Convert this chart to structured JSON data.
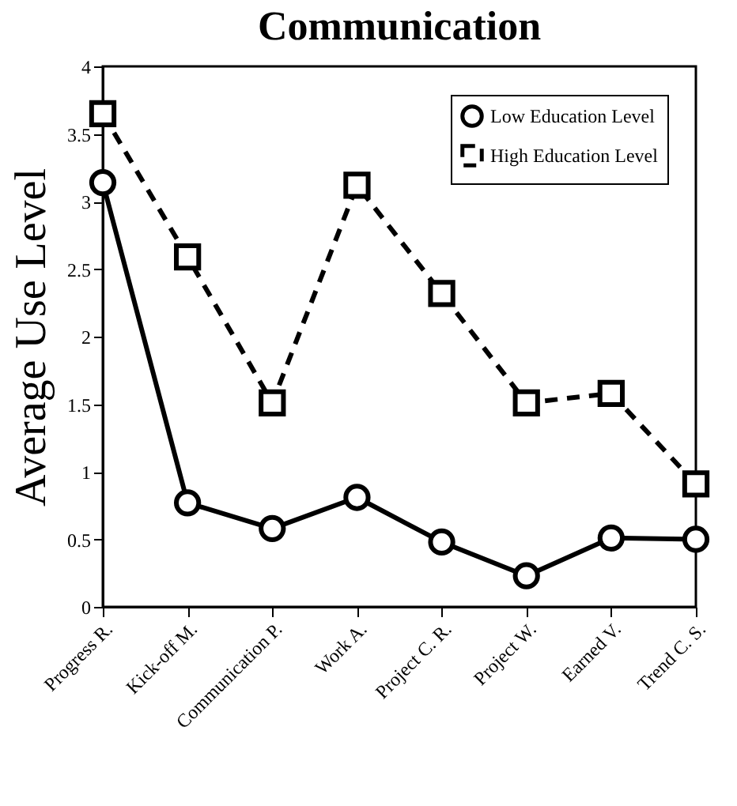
{
  "chart_data": {
    "type": "line",
    "title": "Communication",
    "ylabel": "Average Use Level",
    "categories": [
      "Progress R.",
      "Kick-off M.",
      "Communication P.",
      "Work A.",
      "Project C. R.",
      "Project W.",
      "Earned V.",
      "Trend C. S."
    ],
    "series": [
      {
        "name": "Low Education Level",
        "color": "#000000",
        "marker": "circle",
        "line_style": "solid",
        "values": [
          3.14,
          0.77,
          0.58,
          0.81,
          0.48,
          0.23,
          0.51,
          0.5
        ]
      },
      {
        "name": "High Education Level",
        "color": "#000000",
        "marker": "square",
        "line_style": "dashed",
        "values": [
          3.65,
          2.59,
          1.51,
          3.12,
          2.32,
          1.51,
          1.58,
          0.91
        ]
      }
    ],
    "ylim": [
      0,
      4
    ],
    "yticks": [
      0,
      0.5,
      1,
      1.5,
      2,
      2.5,
      3,
      3.5,
      4
    ],
    "grid": false,
    "legend": "top right"
  }
}
